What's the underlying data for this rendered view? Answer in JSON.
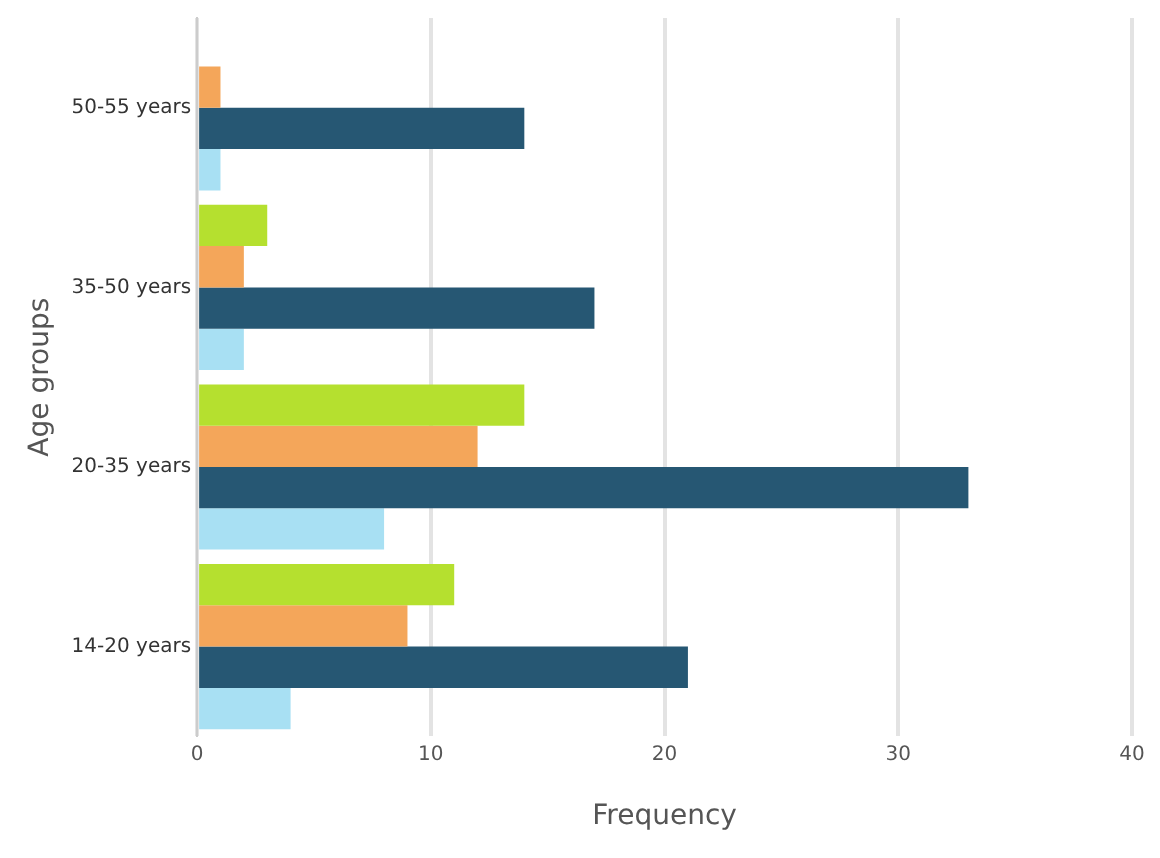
{
  "chart_data": {
    "type": "bar",
    "orientation": "horizontal",
    "xlabel": "Frequency",
    "ylabel": "Age groups",
    "categories": [
      "50-55 years",
      "35-50 years",
      "20-35 years",
      "14-20 years"
    ],
    "series": [
      {
        "color": "#b5e02f",
        "values": [
          0,
          3,
          14,
          11
        ]
      },
      {
        "color": "#f4a65a",
        "values": [
          1,
          2,
          12,
          9
        ]
      },
      {
        "color": "#265773",
        "values": [
          14,
          17,
          33,
          21
        ]
      },
      {
        "color": "#a8e0f3",
        "values": [
          1,
          2,
          8,
          4
        ]
      }
    ],
    "xlim": [
      0,
      40
    ],
    "xticks": [
      0,
      10,
      20,
      30,
      40
    ],
    "grid": "x",
    "legend": false
  }
}
